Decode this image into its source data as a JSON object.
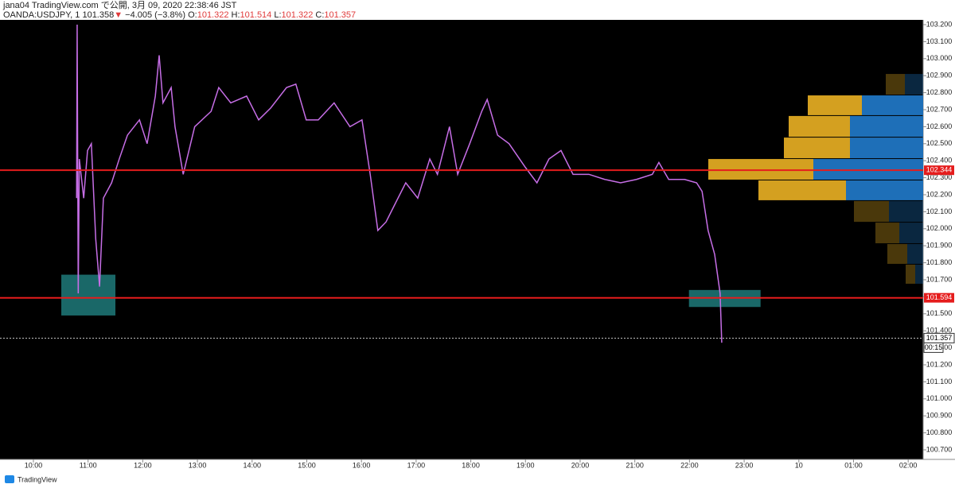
{
  "header": {
    "title": "jana04 TradingView.com で公開, 3月 09, 2020 22:38:46 JST",
    "symbol": "OANDA:USDJPY, 1",
    "last": "101.358",
    "change": "−4.005 (−3.8%)",
    "ohlc": [
      {
        "label": "O:",
        "value": "101.322"
      },
      {
        "label": "H:",
        "value": "101.514"
      },
      {
        "label": "L:",
        "value": "101.322"
      },
      {
        "label": "C:",
        "value": "101.357"
      }
    ]
  },
  "footer": {
    "brand": "TradingView"
  },
  "chart_data": {
    "type": "line",
    "x": [
      10.79,
      10.8,
      10.82,
      10.84,
      10.92,
      10.99,
      11.06,
      11.14,
      11.21,
      11.28,
      11.43,
      11.57,
      11.72,
      11.94,
      12.08,
      12.23,
      12.3,
      12.37,
      12.52,
      12.59,
      12.74,
      12.95,
      13.25,
      13.39,
      13.61,
      13.9,
      14.12,
      14.34,
      14.63,
      14.8,
      14.99,
      15.21,
      15.5,
      15.79,
      16.01,
      16.16,
      16.3,
      16.45,
      16.59,
      16.81,
      17.03,
      17.25,
      17.39,
      17.61,
      17.76,
      17.98,
      18.2,
      18.3,
      18.49,
      18.7,
      19.0,
      19.21,
      19.43,
      19.65,
      19.87,
      20.16,
      20.45,
      20.74,
      21.03,
      21.32,
      21.44,
      21.62,
      21.91,
      22.13,
      22.23,
      22.34,
      22.46,
      22.56,
      22.59
    ],
    "series": [
      {
        "color": "#c66ee6",
        "values": [
          102.18,
          103.2,
          101.62,
          102.41,
          102.18,
          102.46,
          102.5,
          101.94,
          101.66,
          102.18,
          102.27,
          102.41,
          102.55,
          102.64,
          102.5,
          102.78,
          103.02,
          102.74,
          102.83,
          102.6,
          102.32,
          102.6,
          102.69,
          102.83,
          102.74,
          102.78,
          102.64,
          102.71,
          102.83,
          102.85,
          102.64,
          102.64,
          102.74,
          102.6,
          102.64,
          102.32,
          101.99,
          102.04,
          102.13,
          102.27,
          102.18,
          102.41,
          102.32,
          102.6,
          102.32,
          102.5,
          102.69,
          102.76,
          102.55,
          102.5,
          102.36,
          102.27,
          102.41,
          102.46,
          102.32,
          102.32,
          102.29,
          102.27,
          102.29,
          102.32,
          102.39,
          102.29,
          102.29,
          102.27,
          102.22,
          101.99,
          101.85,
          101.62,
          101.33
        ]
      }
    ],
    "xlim": [
      9.389,
      26.274
    ],
    "xticks": [
      {
        "value": 10,
        "label": "10:00"
      },
      {
        "value": 11,
        "label": "11:00"
      },
      {
        "value": 12,
        "label": "12:00"
      },
      {
        "value": 13,
        "label": "13:00"
      },
      {
        "value": 14,
        "label": "14:00"
      },
      {
        "value": 15,
        "label": "15:00"
      },
      {
        "value": 16,
        "label": "16:00"
      },
      {
        "value": 17,
        "label": "17:00"
      },
      {
        "value": 18,
        "label": "18:00"
      },
      {
        "value": 19,
        "label": "19:00"
      },
      {
        "value": 20,
        "label": "20:00"
      },
      {
        "value": 21,
        "label": "21:00"
      },
      {
        "value": 22,
        "label": "22:00"
      },
      {
        "value": 23,
        "label": "23:00"
      },
      {
        "value": 24,
        "label": "10"
      },
      {
        "value": 25,
        "label": "01:00"
      },
      {
        "value": 26,
        "label": "02:00"
      }
    ],
    "ylim": [
      100.644,
      103.228
    ],
    "yticks": [
      {
        "value": 100.7,
        "label": "100.700"
      },
      {
        "value": 100.8,
        "label": "100.800"
      },
      {
        "value": 100.9,
        "label": "100.900"
      },
      {
        "value": 101.0,
        "label": "101.000"
      },
      {
        "value": 101.1,
        "label": "101.100"
      },
      {
        "value": 101.2,
        "label": "101.200"
      },
      {
        "value": 101.3,
        "label": "101.300"
      },
      {
        "value": 101.4,
        "label": "101.400"
      },
      {
        "value": 101.5,
        "label": "101.500"
      },
      {
        "value": 101.6,
        "label": "101.600"
      },
      {
        "value": 101.7,
        "label": "101.700"
      },
      {
        "value": 101.8,
        "label": "101.800"
      },
      {
        "value": 101.9,
        "label": "101.900"
      },
      {
        "value": 102.0,
        "label": "102.000"
      },
      {
        "value": 102.1,
        "label": "102.100"
      },
      {
        "value": 102.2,
        "label": "102.200"
      },
      {
        "value": 102.3,
        "label": "102.300"
      },
      {
        "value": 102.4,
        "label": "102.400"
      },
      {
        "value": 102.5,
        "label": "102.500"
      },
      {
        "value": 102.6,
        "label": "102.600"
      },
      {
        "value": 102.7,
        "label": "102.700"
      },
      {
        "value": 102.8,
        "label": "102.800"
      },
      {
        "value": 102.9,
        "label": "102.900"
      },
      {
        "value": 103.0,
        "label": "103.000"
      },
      {
        "value": 103.1,
        "label": "103.100"
      },
      {
        "value": 103.2,
        "label": "103.200"
      }
    ],
    "levels": [
      {
        "value": 102.344,
        "color": "#e51c1c",
        "style": "solid"
      },
      {
        "value": 101.594,
        "color": "#e51c1c",
        "style": "solid"
      },
      {
        "value": 101.357,
        "color": "#ffffff",
        "style": "dotted",
        "countdown": "00:15"
      }
    ],
    "boxes": [
      {
        "x": [
          10.51,
          11.5
        ],
        "y": [
          101.49,
          101.73
        ],
        "color": "#1f7a7a"
      },
      {
        "x": [
          21.99,
          23.3
        ],
        "y": [
          101.54,
          101.64
        ],
        "color": "#1f7a7a"
      }
    ],
    "volume_profile": {
      "up_color": "#1e6fb8",
      "down_color": "#d4a020",
      "rows": [
        {
          "low": 102.784,
          "high": 102.91,
          "up": 23,
          "down": 24,
          "value_area": false
        },
        {
          "low": 102.663,
          "high": 102.784,
          "up": 77,
          "down": 68,
          "value_area": true
        },
        {
          "low": 102.536,
          "high": 102.663,
          "up": 92,
          "down": 77,
          "value_area": true
        },
        {
          "low": 102.41,
          "high": 102.536,
          "up": 92,
          "down": 83,
          "value_area": true
        },
        {
          "low": 102.284,
          "high": 102.41,
          "up": 138,
          "down": 132,
          "value_area": true
        },
        {
          "low": 102.163,
          "high": 102.284,
          "up": 97,
          "down": 110,
          "value_area": true
        },
        {
          "low": 102.036,
          "high": 102.163,
          "up": 43,
          "down": 44,
          "value_area": false
        },
        {
          "low": 101.91,
          "high": 102.036,
          "up": 30,
          "down": 30,
          "value_area": false
        },
        {
          "low": 101.789,
          "high": 101.91,
          "up": 20,
          "down": 25,
          "value_area": false
        },
        {
          "low": 101.672,
          "high": 101.789,
          "up": 10,
          "down": 12,
          "value_area": false
        }
      ]
    }
  }
}
